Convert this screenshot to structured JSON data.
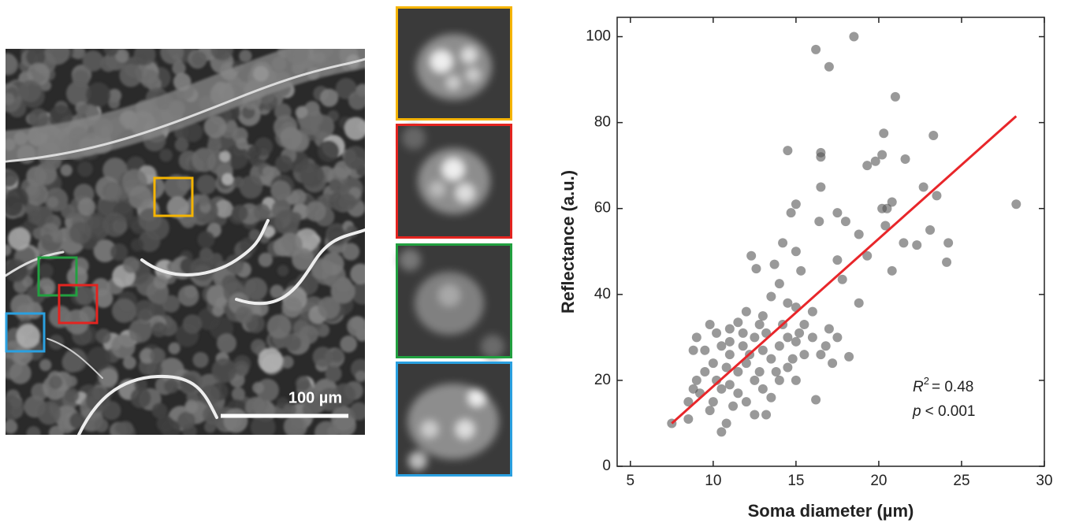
{
  "image": {
    "scale_bar_label": "100 µm"
  },
  "chart_data": {
    "type": "scatter",
    "x_label": "Soma diameter (µm)",
    "y_label": "Reflectance (a.u.)",
    "annotation_r": "R",
    "annotation_r_sup": "2",
    "annotation_r_value": "= 0.48",
    "annotation_p": "p",
    "annotation_p_value": "< 0.001",
    "xlim": [
      4.2,
      30
    ],
    "ylim": [
      0,
      104.5
    ],
    "xticks": [
      5,
      10,
      15,
      20,
      25,
      30
    ],
    "yticks": [
      0,
      20,
      40,
      60,
      80,
      100
    ],
    "color": "#555555",
    "x": [
      16.2,
      17,
      18.5,
      21,
      23.3,
      20.3,
      14.5,
      16.5,
      16.5,
      19.3,
      19.8,
      20.2,
      21.6,
      22.7,
      16.5,
      15,
      14.7,
      16.4,
      17.5,
      18,
      20.2,
      20.5,
      20.8,
      28.3,
      23.5,
      18.8,
      20.4,
      21.5,
      22.3,
      23.1,
      24.2,
      24.1,
      20.8,
      19.3,
      17.5,
      15,
      14.2,
      12.3,
      12.6,
      14,
      15.3,
      13.7,
      17.8,
      18.8,
      18.2,
      16.2,
      17.5,
      17,
      16,
      16.8,
      17.2,
      16.5,
      15.5,
      15,
      14.5,
      13.5,
      13,
      12,
      11.5,
      11,
      9.8,
      10.2,
      9,
      8.8,
      9.5,
      10.5,
      11,
      11.8,
      12.5,
      13,
      13.5,
      14,
      14.5,
      15,
      15.5,
      12,
      11.5,
      10.8,
      10,
      9.5,
      9,
      8.8,
      8.5,
      9.2,
      10,
      10.5,
      11,
      11.5,
      12,
      12.5,
      13,
      13.5,
      14,
      14.5,
      15,
      10.5,
      10.8,
      12.5,
      13.2,
      7.5,
      8.5,
      9.8,
      11.2,
      12.8,
      13.8,
      14.8,
      12.2,
      11,
      10.2,
      13.2,
      14.2,
      15.2,
      16,
      12.8,
      11.8
    ],
    "values": [
      97,
      93,
      100,
      86,
      77,
      77.5,
      73.5,
      73,
      72,
      70,
      71,
      72.5,
      71.5,
      65,
      65,
      61,
      59,
      57,
      59,
      57,
      60,
      60,
      61.5,
      61,
      63,
      54,
      56,
      52,
      51.5,
      55,
      52,
      47.5,
      45.5,
      49,
      48,
      50,
      52,
      49,
      46,
      42.5,
      45.5,
      47,
      43.5,
      38,
      25.5,
      15.5,
      30,
      32,
      36,
      28,
      24,
      26,
      33,
      37,
      38,
      39.5,
      35,
      36,
      33.5,
      32,
      33,
      31,
      30,
      27,
      27,
      28,
      26,
      28,
      30,
      27,
      25,
      28,
      30,
      29,
      26,
      24,
      22,
      23,
      24,
      22,
      20,
      18,
      15,
      17,
      15,
      18,
      19,
      17,
      15,
      20,
      18,
      16,
      20,
      23,
      20,
      8,
      10,
      12,
      12,
      10,
      11,
      13,
      14,
      22,
      22,
      25,
      26,
      29,
      20,
      31,
      33,
      31,
      30,
      33,
      31
    ],
    "fit_line": {
      "color": "#e8262a",
      "x": [
        7.5,
        28.3
      ],
      "values": [
        10,
        81.5
      ]
    }
  }
}
